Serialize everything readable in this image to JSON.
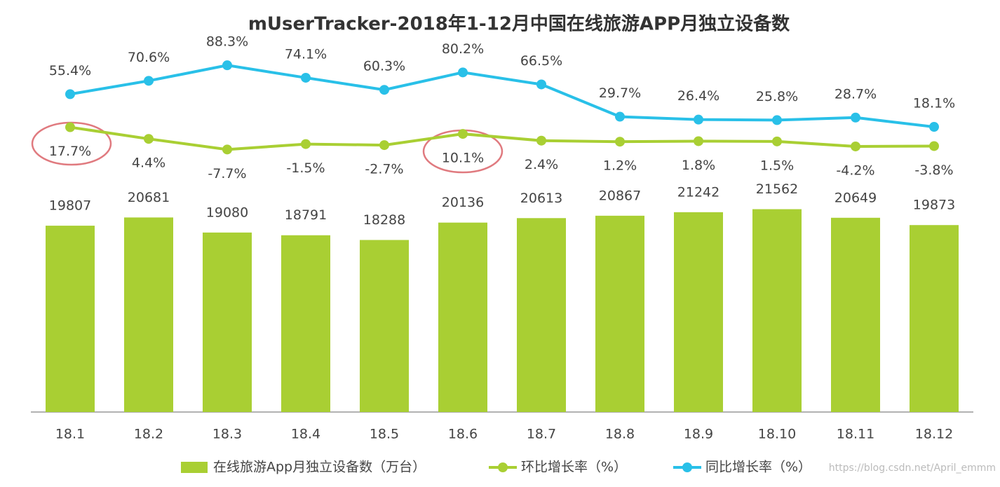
{
  "chart_data": {
    "type": "bar",
    "title": "mUserTracker-2018年1-12月中国在线旅游APP月独立设备数",
    "categories": [
      "18.1",
      "18.2",
      "18.3",
      "18.4",
      "18.5",
      "18.6",
      "18.7",
      "18.8",
      "18.9",
      "18.10",
      "18.11",
      "18.12"
    ],
    "series": [
      {
        "name": "在线旅游App月独立设备数（万台）",
        "type": "bar",
        "color": "#a9cf33",
        "values": [
          19807,
          20681,
          19080,
          18791,
          18288,
          20136,
          20613,
          20867,
          21242,
          21562,
          20649,
          19873
        ]
      },
      {
        "name": "环比增长率（%）",
        "type": "line",
        "axis": "y2",
        "color": "#a9cf33",
        "values": [
          17.7,
          4.4,
          -7.7,
          -1.5,
          -2.7,
          10.1,
          2.4,
          1.2,
          1.8,
          1.5,
          -4.2,
          -3.8
        ],
        "value_labels": [
          "17.7%",
          "4.4%",
          "-7.7%",
          "-1.5%",
          "-2.7%",
          "10.1%",
          "2.4%",
          "1.2%",
          "1.8%",
          "1.5%",
          "-4.2%",
          "-3.8%"
        ]
      },
      {
        "name": "同比增长率（%）",
        "type": "line",
        "axis": "y2",
        "color": "#29c0e8",
        "values": [
          55.4,
          70.6,
          88.3,
          74.1,
          60.3,
          80.2,
          66.5,
          29.7,
          26.4,
          25.8,
          28.7,
          18.1
        ],
        "value_labels": [
          "55.4%",
          "70.6%",
          "88.3%",
          "74.1%",
          "60.3%",
          "80.2%",
          "66.5%",
          "29.7%",
          "26.4%",
          "25.8%",
          "28.7%",
          "18.1%"
        ]
      }
    ],
    "ylim": [
      0,
      40000
    ],
    "y2lim": [
      -307,
      122
    ],
    "watermark": "https://blog.csdn.net/April_emmm"
  }
}
